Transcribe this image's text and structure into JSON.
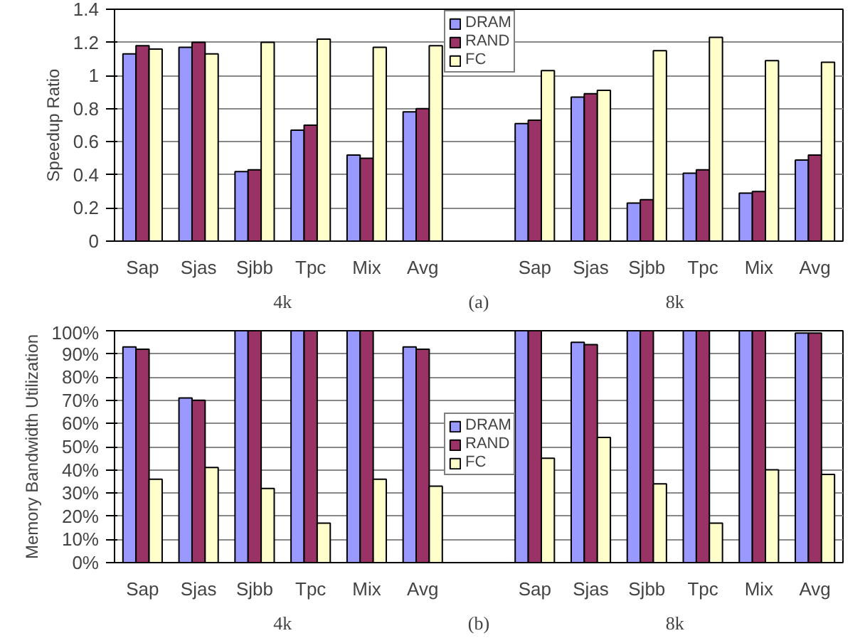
{
  "chart_data": [
    {
      "type": "bar",
      "ylabel": "Speedup Ratio",
      "categories": [
        "Sap",
        "Sjas",
        "Sjbb",
        "Tpc",
        "Mix",
        "Avg",
        null,
        "Sap",
        "Sjas",
        "Sjbb",
        "Tpc",
        "Mix",
        "Avg"
      ],
      "series": [
        {
          "name": "DRAM",
          "color": "#9999ff",
          "values": [
            1.13,
            1.17,
            0.42,
            0.67,
            0.52,
            0.78,
            null,
            0.71,
            0.87,
            0.23,
            0.41,
            0.29,
            0.49
          ]
        },
        {
          "name": "RAND",
          "color": "#993366",
          "values": [
            1.18,
            1.2,
            0.43,
            0.7,
            0.5,
            0.8,
            null,
            0.73,
            0.89,
            0.25,
            0.43,
            0.3,
            0.52
          ]
        },
        {
          "name": "FC",
          "color": "#ffffcc",
          "values": [
            1.16,
            1.13,
            1.2,
            1.22,
            1.17,
            1.18,
            null,
            1.03,
            0.91,
            1.15,
            1.23,
            1.09,
            1.08
          ]
        }
      ],
      "ylim": [
        0,
        1.4
      ],
      "yticks": [
        0,
        0.2,
        0.4,
        0.6,
        0.8,
        1,
        1.2,
        1.4
      ],
      "grid": "y",
      "legend": "top",
      "annotations": [
        "4k",
        "(a)",
        "8k"
      ]
    },
    {
      "type": "bar",
      "ylabel": "Memory Bandwidth Utilization",
      "categories": [
        "Sap",
        "Sjas",
        "Sjbb",
        "Tpc",
        "Mix",
        "Avg",
        null,
        "Sap",
        "Sjas",
        "Sjbb",
        "Tpc",
        "Mix",
        "Avg"
      ],
      "series": [
        {
          "name": "DRAM",
          "color": "#9999ff",
          "values": [
            93,
            71,
            100,
            100,
            100,
            93,
            null,
            100,
            95,
            100,
            100,
            100,
            99
          ]
        },
        {
          "name": "RAND",
          "color": "#993366",
          "values": [
            92,
            70,
            100,
            100,
            100,
            92,
            null,
            100,
            94,
            100,
            100,
            100,
            99
          ]
        },
        {
          "name": "FC",
          "color": "#ffffcc",
          "values": [
            36,
            41,
            32,
            17,
            36,
            33,
            null,
            45,
            54,
            34,
            17,
            40,
            38
          ]
        }
      ],
      "ylim": [
        0,
        100
      ],
      "yticks": [
        {
          "value": 0,
          "label": "0%"
        },
        {
          "value": 10,
          "label": "10%"
        },
        {
          "value": 20,
          "label": "20%"
        },
        {
          "value": 30,
          "label": "30%"
        },
        {
          "value": 40,
          "label": "40%"
        },
        {
          "value": 50,
          "label": "50%"
        },
        {
          "value": 60,
          "label": "60%"
        },
        {
          "value": 70,
          "label": "70%"
        },
        {
          "value": 80,
          "label": "80%"
        },
        {
          "value": 90,
          "label": "90%"
        },
        {
          "value": 100,
          "label": "100%"
        }
      ],
      "grid": "y",
      "legend": "center",
      "annotations": [
        "4k",
        "(b)",
        "8k"
      ]
    }
  ]
}
